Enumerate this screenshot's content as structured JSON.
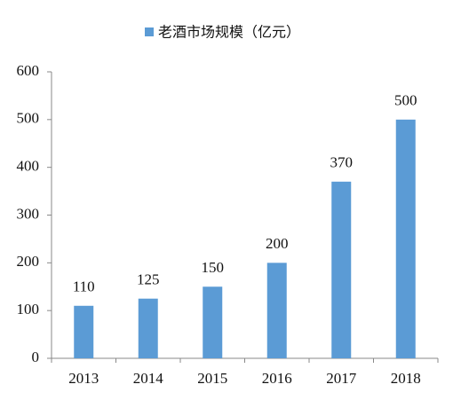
{
  "chart_data": {
    "type": "bar",
    "categories": [
      "2013",
      "2014",
      "2015",
      "2016",
      "2017",
      "2018"
    ],
    "series": [
      {
        "name": "老酒市场规模（亿元）",
        "color": "#5b9bd5",
        "values": [
          110,
          125,
          150,
          200,
          370,
          500
        ]
      }
    ],
    "ylim": [
      0,
      600
    ],
    "yticks": [
      0,
      100,
      200,
      300,
      400,
      500,
      600
    ],
    "grid": false,
    "legend": "top"
  }
}
